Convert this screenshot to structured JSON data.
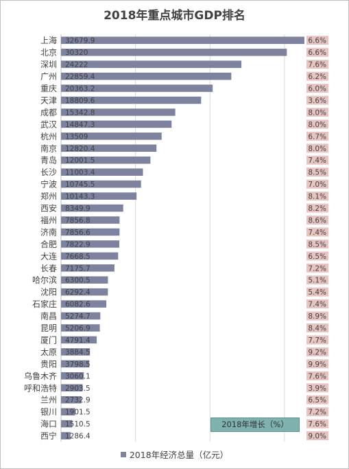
{
  "chart_data": {
    "type": "bar",
    "orientation": "horizontal",
    "title": "2018年重点城市GDP排名",
    "categories": [
      "上海",
      "北京",
      "深圳",
      "广州",
      "重庆",
      "天津",
      "成都",
      "武汉",
      "杭州",
      "南京",
      "青岛",
      "长沙",
      "宁波",
      "郑州",
      "西安",
      "福州",
      "济南",
      "合肥",
      "大连",
      "长春",
      "哈尔滨",
      "沈阳",
      "石家庄",
      "南昌",
      "昆明",
      "厦门",
      "太原",
      "贵阳",
      "乌鲁木齐",
      "呼和浩特",
      "兰州",
      "银川",
      "海口",
      "西宁"
    ],
    "series": [
      {
        "name": "2018年经济总量（亿元）",
        "values": [
          32679.9,
          30320,
          24222,
          22859.4,
          20363.2,
          18809.6,
          15342.8,
          14847.3,
          13509,
          12820.4,
          12001.5,
          11003.4,
          10745.5,
          10143.3,
          8349.9,
          7856.8,
          7856.6,
          7822.9,
          7668.5,
          7175.7,
          6300.5,
          6292.4,
          6082.6,
          5274.7,
          5206.9,
          4791.4,
          3884.5,
          3798.5,
          3060.1,
          2903.5,
          2732.9,
          1901.5,
          1510.5,
          1286.4
        ],
        "labels": [
          "32679.9",
          "30320",
          "24222",
          "22859.4",
          "20363.2",
          "18809.6",
          "15342.8",
          "14847.3",
          "13509",
          "12820.4",
          "12001.5",
          "11003.4",
          "10745.5",
          "10143.3",
          "8349.9",
          "7856.8",
          "7856.6",
          "7822.9",
          "7668.5",
          "7175.7",
          "6300.5",
          "6292.4",
          "6082.6",
          "5274.7",
          "5206.9",
          "4791.4",
          "3884.5",
          "3798.5",
          "3060.1",
          "2903.5",
          "2732.9",
          "1901.5",
          "1510.5",
          "1286.4"
        ]
      },
      {
        "name": "2018年增长（%）",
        "labels": [
          "6.6%",
          "6.6%",
          "7.6%",
          "6.2%",
          "6.0%",
          "3.6%",
          "8.0%",
          "8.0%",
          "6.7%",
          "8.0%",
          "7.4%",
          "8.5%",
          "7.0%",
          "8.1%",
          "8.2%",
          "8.6%",
          "7.4%",
          "8.5%",
          "6.5%",
          "7.2%",
          "5.1%",
          "5.4%",
          "7.4%",
          "8.9%",
          "8.4%",
          "7.7%",
          "9.2%",
          "9.9%",
          "7.6%",
          "3.9%",
          "6.5%",
          "7.2%",
          "7.6%",
          "9.0%"
        ]
      }
    ],
    "xlim": [
      0,
      36000
    ],
    "grid": true,
    "legend": "bottom",
    "colors": {
      "bar": "#7d829f",
      "growth_bg": "#e8c4c1",
      "growth_box": "#7fb1ae"
    }
  }
}
